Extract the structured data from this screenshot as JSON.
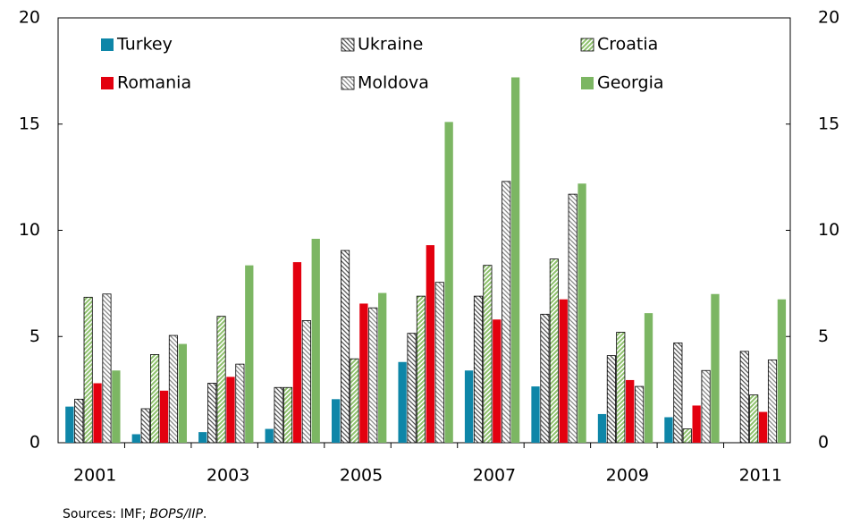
{
  "chart_data": {
    "type": "bar",
    "categories": [
      "2001",
      null,
      "2003",
      null,
      "2005",
      null,
      "2007",
      null,
      "2009",
      null,
      "2011"
    ],
    "series": [
      {
        "name": "Turkey",
        "color": "#0e86a8",
        "pattern": "solid",
        "values": [
          1.7,
          0.4,
          0.5,
          0.65,
          2.05,
          3.8,
          3.4,
          2.65,
          1.35,
          1.2,
          null
        ]
      },
      {
        "name": "Ukraine",
        "color": "#555555",
        "pattern": "hatch-back",
        "values": [
          2.05,
          1.6,
          2.8,
          2.6,
          9.05,
          5.15,
          6.9,
          6.05,
          4.1,
          4.7,
          4.3
        ]
      },
      {
        "name": "Croatia",
        "color": "#8dc16b",
        "pattern": "hatch-forward",
        "values": [
          6.85,
          4.15,
          5.95,
          2.6,
          3.95,
          6.9,
          8.35,
          8.65,
          5.2,
          0.65,
          2.25
        ]
      },
      {
        "name": "Romania",
        "color": "#e3000f",
        "pattern": "solid",
        "values": [
          2.8,
          2.45,
          3.1,
          8.5,
          6.55,
          9.3,
          5.8,
          6.75,
          2.95,
          1.75,
          1.45
        ]
      },
      {
        "name": "Moldova",
        "color": "#888888",
        "pattern": "hatch-back",
        "values": [
          7.0,
          5.05,
          3.7,
          5.75,
          6.35,
          7.55,
          12.3,
          11.7,
          2.65,
          3.4,
          3.9
        ]
      },
      {
        "name": "Georgia",
        "color": "#7cb663",
        "pattern": "solid",
        "values": [
          3.4,
          4.65,
          8.35,
          9.6,
          7.05,
          15.1,
          17.2,
          12.2,
          6.1,
          7.0,
          6.75
        ]
      }
    ],
    "ylim": [
      0,
      20
    ],
    "yticks": [
      0,
      5,
      10,
      15,
      20
    ],
    "y2lim": [
      0,
      20
    ],
    "y2ticks": [
      0,
      5,
      10,
      15,
      20
    ],
    "legend": "top",
    "grid": false,
    "note": [
      "Sources: IMF;",
      "BOPS/IIP",
      "."
    ]
  }
}
